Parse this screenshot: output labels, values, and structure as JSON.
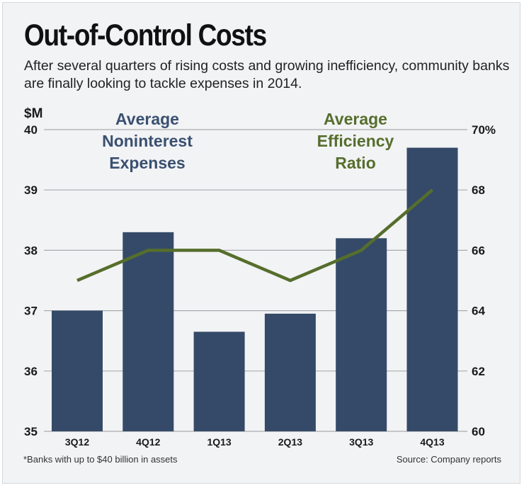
{
  "header": {
    "title": "Out-of-Control Costs",
    "subtitle": "After several quarters of rising costs and growing inefficiency, community banks are finally looking to tackle expenses in 2014."
  },
  "footer": {
    "note": "*Banks with up to $40 billion in assets",
    "source": "Source: Company reports"
  },
  "colors": {
    "bar": "#344a68",
    "line": "#566e2c",
    "grid": "#a9abae",
    "bar_label": "#3a5070",
    "line_label": "#566e2c"
  },
  "chart_data": {
    "type": "bar",
    "title": "Out-of-Control Costs",
    "categories": [
      "3Q12",
      "4Q12",
      "1Q13",
      "2Q13",
      "3Q13",
      "4Q13"
    ],
    "series": [
      {
        "name": "Average Noninterest Expenses",
        "label_lines": [
          "Average",
          "Noninterest",
          "Expenses"
        ],
        "type": "bar",
        "axis": "left",
        "values": [
          37.0,
          38.3,
          36.65,
          36.95,
          38.2,
          39.7
        ]
      },
      {
        "name": "Average Efficiency Ratio",
        "label_lines": [
          "Average",
          "Efficiency",
          "Ratio"
        ],
        "type": "line",
        "axis": "right",
        "values": [
          65,
          66,
          66,
          65,
          66,
          68
        ]
      }
    ],
    "left_axis": {
      "label": "$M",
      "ylim": [
        35,
        40
      ],
      "ticks": [
        "35",
        "36",
        "37",
        "38",
        "39",
        "40"
      ]
    },
    "right_axis": {
      "label": "%",
      "ylim": [
        60,
        70
      ],
      "ticks": [
        "60",
        "62",
        "64",
        "66",
        "68",
        "70%"
      ]
    },
    "grid": true,
    "legend": "inline-top"
  }
}
